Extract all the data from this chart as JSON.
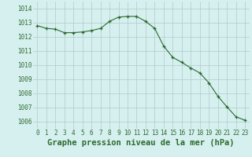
{
  "hours": [
    0,
    1,
    2,
    3,
    4,
    5,
    6,
    7,
    8,
    9,
    10,
    11,
    12,
    13,
    14,
    15,
    16,
    17,
    18,
    19,
    20,
    21,
    22,
    23
  ],
  "pressure": [
    1012.8,
    1012.6,
    1012.55,
    1012.3,
    1012.3,
    1012.35,
    1012.45,
    1012.6,
    1013.1,
    1013.4,
    1013.45,
    1013.45,
    1013.1,
    1012.6,
    1011.35,
    1010.55,
    1010.2,
    1009.8,
    1009.45,
    1008.75,
    1007.8,
    1007.05,
    1006.35,
    1006.1
  ],
  "line_color": "#2d6a2d",
  "marker": "+",
  "bg_color": "#d6f0f0",
  "grid_color": "#b0c8c8",
  "xlabel": "Graphe pression niveau de la mer (hPa)",
  "xlabel_color": "#2d6a2d",
  "ylim": [
    1005.5,
    1014.5
  ],
  "yticks": [
    1006,
    1007,
    1008,
    1009,
    1010,
    1011,
    1012,
    1013,
    1014
  ],
  "xticks": [
    0,
    1,
    2,
    3,
    4,
    5,
    6,
    7,
    8,
    9,
    10,
    11,
    12,
    13,
    14,
    15,
    16,
    17,
    18,
    19,
    20,
    21,
    22,
    23
  ],
  "tick_color": "#2d6a2d",
  "tick_labelsize": 5.5,
  "xlabel_fontsize": 7.5,
  "xlabel_bold": true,
  "linewidth": 0.8,
  "markersize": 3.5,
  "markeredgewidth": 0.9
}
